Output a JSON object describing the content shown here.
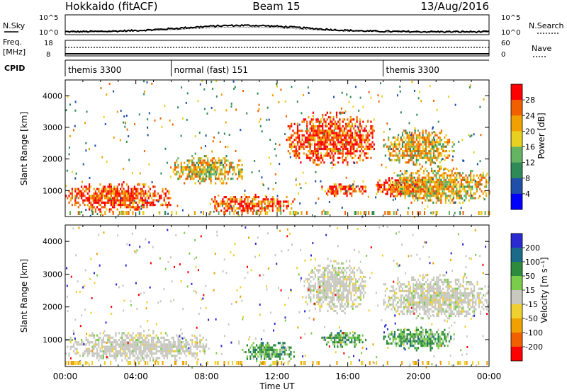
{
  "header": {
    "title_left": "Hokkaido (fitACF)",
    "title_center": "Beam 15",
    "title_right": "13/Aug/2016"
  },
  "noise_panel": {
    "left_label": "N.Sky",
    "right_label": "N.Search",
    "ticks_left": [
      "10^5",
      "10^0"
    ],
    "ticks_right": [
      "10^5",
      "10^0"
    ]
  },
  "freq_panel": {
    "left_label_1": "Freq.",
    "left_label_2": "[MHz]",
    "right_label": "Nave",
    "ticks_left": [
      "18",
      "8"
    ],
    "ticks_right": [
      "60",
      "0"
    ]
  },
  "cpid_panel": {
    "label": "CPID",
    "segments": [
      {
        "name": "themis 3300",
        "start_hour": 0,
        "end_hour": 6
      },
      {
        "name": "normal (fast) 151",
        "start_hour": 6,
        "end_hour": 18
      },
      {
        "name": "themis 3300",
        "start_hour": 18,
        "end_hour": 24
      }
    ]
  },
  "x_axis": {
    "label": "Time UT",
    "ticks": [
      "00:00",
      "04:00",
      "08:00",
      "12:00",
      "16:00",
      "20:00",
      "00:00"
    ]
  },
  "colors": {
    "power": [
      "#0000ff",
      "#1f4fa8",
      "#2e8b57",
      "#64b464",
      "#e8d020",
      "#f0a000",
      "#f06000",
      "#ff0000"
    ],
    "velocity": [
      "#2a2ad0",
      "#1a6a8a",
      "#2e8b3e",
      "#7acc4a",
      "#c8c8c0",
      "#f0d030",
      "#f0a000",
      "#f06000",
      "#ff0000"
    ]
  },
  "chart_data": [
    {
      "type": "heatmap",
      "name": "power",
      "xlabel": "Time UT",
      "ylabel": "Slant Range [km]",
      "xlim": [
        0,
        24
      ],
      "ylim": [
        180,
        4500
      ],
      "yticks": [
        1000,
        2000,
        3000,
        4000
      ],
      "colorbar": {
        "label": "Power [dB]",
        "ticks": [
          "4",
          "8",
          "12",
          "16",
          "20",
          "24",
          "28"
        ]
      },
      "features": [
        {
          "t0": 0.0,
          "t1": 6.0,
          "r0": 350,
          "r1": 1300,
          "level": "high"
        },
        {
          "t0": 6.0,
          "t1": 10.0,
          "r0": 1200,
          "r1": 2200,
          "level": "mid"
        },
        {
          "t0": 8.0,
          "t1": 13.0,
          "r0": 300,
          "r1": 900,
          "level": "high"
        },
        {
          "t0": 12.5,
          "t1": 17.5,
          "r0": 1800,
          "r1": 3500,
          "level": "high"
        },
        {
          "t0": 14.5,
          "t1": 17.0,
          "r0": 850,
          "r1": 1300,
          "level": "high"
        },
        {
          "t0": 17.5,
          "t1": 20.5,
          "r0": 800,
          "r1": 1500,
          "level": "high"
        },
        {
          "t0": 18.5,
          "t1": 24.0,
          "r0": 600,
          "r1": 1800,
          "level": "mid"
        },
        {
          "t0": 18.0,
          "t1": 22.0,
          "r0": 1800,
          "r1": 3000,
          "level": "mid"
        }
      ]
    },
    {
      "type": "heatmap",
      "name": "velocity",
      "xlabel": "Time UT",
      "ylabel": "Slant Range [km]",
      "xlim": [
        0,
        24
      ],
      "ylim": [
        180,
        4500
      ],
      "yticks": [
        1000,
        2000,
        3000,
        4000
      ],
      "colorbar": {
        "label": "Velocity [m s⁻¹]",
        "ticks": [
          "200",
          "100",
          "50",
          "15",
          "-15",
          "-50",
          "-100",
          "-200"
        ]
      },
      "features": [
        {
          "t0": 0.0,
          "t1": 8.0,
          "r0": 350,
          "r1": 1300,
          "level": "ground"
        },
        {
          "t0": 10.0,
          "t1": 13.0,
          "r0": 300,
          "r1": 1000,
          "level": "positive"
        },
        {
          "t0": 13.5,
          "t1": 17.0,
          "r0": 1800,
          "r1": 3500,
          "level": "ground"
        },
        {
          "t0": 14.5,
          "t1": 17.0,
          "r0": 800,
          "r1": 1300,
          "level": "positive"
        },
        {
          "t0": 18.0,
          "t1": 22.0,
          "r0": 700,
          "r1": 1400,
          "level": "positive"
        },
        {
          "t0": 18.0,
          "t1": 24.0,
          "r0": 1600,
          "r1": 3000,
          "level": "ground"
        }
      ]
    }
  ]
}
